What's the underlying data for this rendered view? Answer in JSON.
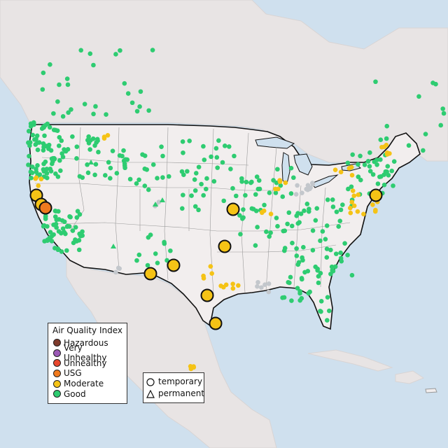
{
  "legend": {
    "title": "Air Quality Index",
    "categories": [
      {
        "label": "Hazardous",
        "color": "#7e3b2c"
      },
      {
        "label": "Very Unhealthy",
        "color": "#9b59b6"
      },
      {
        "label": "Unhealthy",
        "color": "#e8472e"
      },
      {
        "label": "USG",
        "color": "#f07a1e"
      },
      {
        "label": "Moderate",
        "color": "#f5c316"
      },
      {
        "label": "Good",
        "color": "#2ecc71"
      }
    ]
  },
  "type_legend": {
    "items": [
      {
        "label": "temporary",
        "shape": "circle"
      },
      {
        "label": "permanent",
        "shape": "triangle"
      }
    ]
  },
  "colors": {
    "water": "#cfe0ee",
    "land_us": "#f2eeee",
    "land_other": "#e6e2e2",
    "no_data": "#c3c7cc"
  }
}
